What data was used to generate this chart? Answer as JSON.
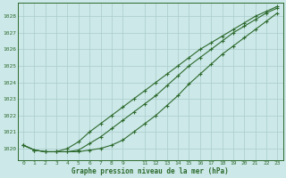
{
  "title": "Graphe pression niveau de la mer (hPa)",
  "bg_color": "#cce8e8",
  "grid_color": "#aacccc",
  "line_color": "#2d6a2d",
  "xlim": [
    -0.5,
    23.5
  ],
  "ylim": [
    1019.3,
    1028.8
  ],
  "yticks": [
    1020,
    1021,
    1022,
    1023,
    1024,
    1025,
    1026,
    1027,
    1028
  ],
  "xticks": [
    0,
    1,
    2,
    3,
    4,
    5,
    6,
    7,
    8,
    9,
    11,
    12,
    13,
    14,
    15,
    16,
    17,
    18,
    19,
    20,
    21,
    22,
    23
  ],
  "hours": [
    0,
    1,
    2,
    3,
    4,
    5,
    6,
    7,
    8,
    9,
    10,
    11,
    12,
    13,
    14,
    15,
    16,
    17,
    18,
    19,
    20,
    21,
    22,
    23
  ],
  "line1": [
    1020.2,
    1019.9,
    1019.8,
    1019.8,
    1019.8,
    1019.8,
    1019.9,
    1020.0,
    1020.2,
    1020.5,
    1021.0,
    1021.5,
    1022.0,
    1022.6,
    1023.2,
    1023.9,
    1024.5,
    1025.1,
    1025.7,
    1026.2,
    1026.7,
    1027.2,
    1027.7,
    1028.2
  ],
  "line2": [
    1020.2,
    1019.9,
    1019.8,
    1019.8,
    1019.8,
    1019.9,
    1020.3,
    1020.7,
    1021.2,
    1021.7,
    1022.2,
    1022.7,
    1023.2,
    1023.8,
    1024.4,
    1025.0,
    1025.5,
    1026.0,
    1026.5,
    1027.0,
    1027.4,
    1027.8,
    1028.2,
    1028.5
  ],
  "line3": [
    1020.2,
    1019.9,
    1019.8,
    1019.8,
    1020.0,
    1020.4,
    1021.0,
    1021.5,
    1022.0,
    1022.5,
    1023.0,
    1023.5,
    1024.0,
    1024.5,
    1025.0,
    1025.5,
    1026.0,
    1026.4,
    1026.8,
    1027.2,
    1027.6,
    1028.0,
    1028.3,
    1028.6
  ]
}
